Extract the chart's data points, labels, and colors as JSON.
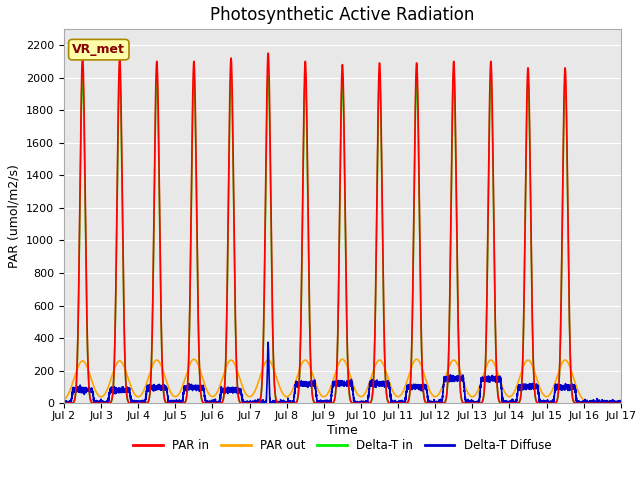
{
  "title": "Photosynthetic Active Radiation",
  "xlabel": "Time",
  "ylabel": "PAR (umol/m2/s)",
  "xlim": [
    2,
    17
  ],
  "ylim": [
    0,
    2300
  ],
  "yticks": [
    0,
    200,
    400,
    600,
    800,
    1000,
    1200,
    1400,
    1600,
    1800,
    2000,
    2200
  ],
  "xtick_labels": [
    "Jul 2",
    "Jul 3",
    "Jul 4",
    "Jul 5",
    "Jul 6",
    "Jul 7",
    "Jul 8",
    "Jul 9",
    "Jul 10",
    "Jul 11",
    "Jul 12",
    "Jul 13",
    "Jul 14",
    "Jul 15",
    "Jul 16",
    "Jul 17"
  ],
  "xtick_positions": [
    2,
    3,
    4,
    5,
    6,
    7,
    8,
    9,
    10,
    11,
    12,
    13,
    14,
    15,
    16,
    17
  ],
  "color_par_in": "#ff0000",
  "color_par_out": "#ffa500",
  "color_delta_in": "#00ee00",
  "color_delta_diffuse": "#0000cc",
  "legend_label": "VR_met",
  "legend_bg": "#ffffaa",
  "legend_border": "#aa8800",
  "axes_bg": "#e8e8e8",
  "par_in_peaks": [
    2.5,
    3.5,
    4.5,
    5.5,
    6.5,
    7.5,
    8.5,
    9.5,
    10.5,
    11.5,
    12.5,
    13.5,
    14.5,
    15.5
  ],
  "par_in_heights": [
    2130,
    2120,
    2100,
    2100,
    2120,
    2150,
    2100,
    2080,
    2090,
    2090,
    2100,
    2100,
    2060,
    2060
  ],
  "par_out_heights": [
    260,
    260,
    265,
    270,
    265,
    265,
    265,
    270,
    265,
    270,
    265,
    265,
    265,
    265
  ],
  "delta_in_heights": [
    2020,
    2000,
    2000,
    2000,
    2000,
    2010,
    1990,
    1980,
    2000,
    1990,
    2000,
    2000,
    1980,
    1970
  ],
  "diffuse_heights": [
    80,
    80,
    95,
    95,
    80,
    360,
    120,
    120,
    120,
    100,
    150,
    150,
    100,
    100
  ],
  "diffuse_widths": [
    0.28,
    0.28,
    0.28,
    0.28,
    0.28,
    0.02,
    0.28,
    0.28,
    0.28,
    0.28,
    0.28,
    0.28,
    0.28,
    0.28
  ],
  "title_fontsize": 12,
  "axis_fontsize": 9,
  "tick_fontsize": 8,
  "linewidth": 1.2
}
